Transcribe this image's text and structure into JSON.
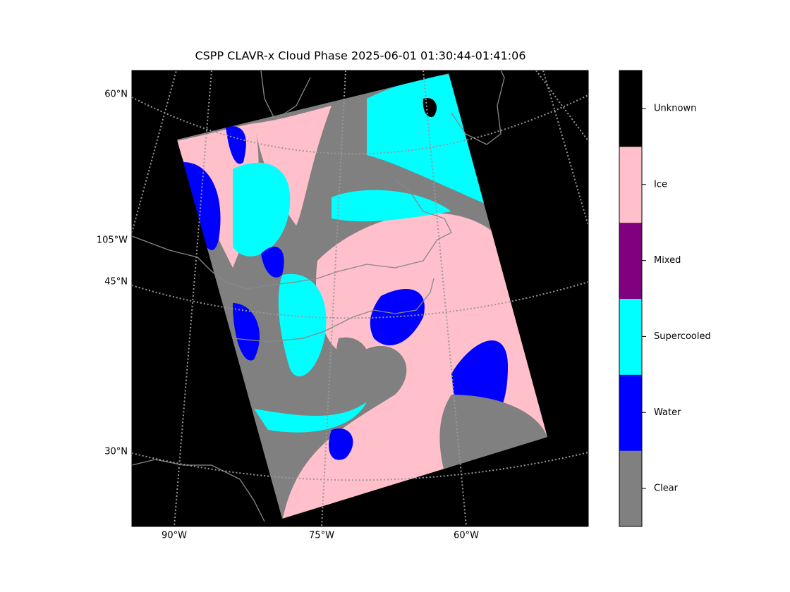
{
  "title": "CSPP CLAVR-x Cloud Phase 2025-06-01 01:30:44-01:41:06",
  "map": {
    "lat_labels": [
      "60°N",
      "45°N",
      "30°N"
    ],
    "lon_labels_left": [
      "105°W"
    ],
    "lon_labels_bottom": [
      "90°W",
      "75°W",
      "60°W"
    ]
  },
  "colorbar": {
    "classes": [
      {
        "label": "Clear",
        "color": "#808080"
      },
      {
        "label": "Water",
        "color": "#0000ff"
      },
      {
        "label": "Supercooled",
        "color": "#00ffff"
      },
      {
        "label": "Mixed",
        "color": "#800080"
      },
      {
        "label": "Ice",
        "color": "#ffc0cb"
      },
      {
        "label": "Unknown",
        "color": "#000000"
      }
    ]
  }
}
